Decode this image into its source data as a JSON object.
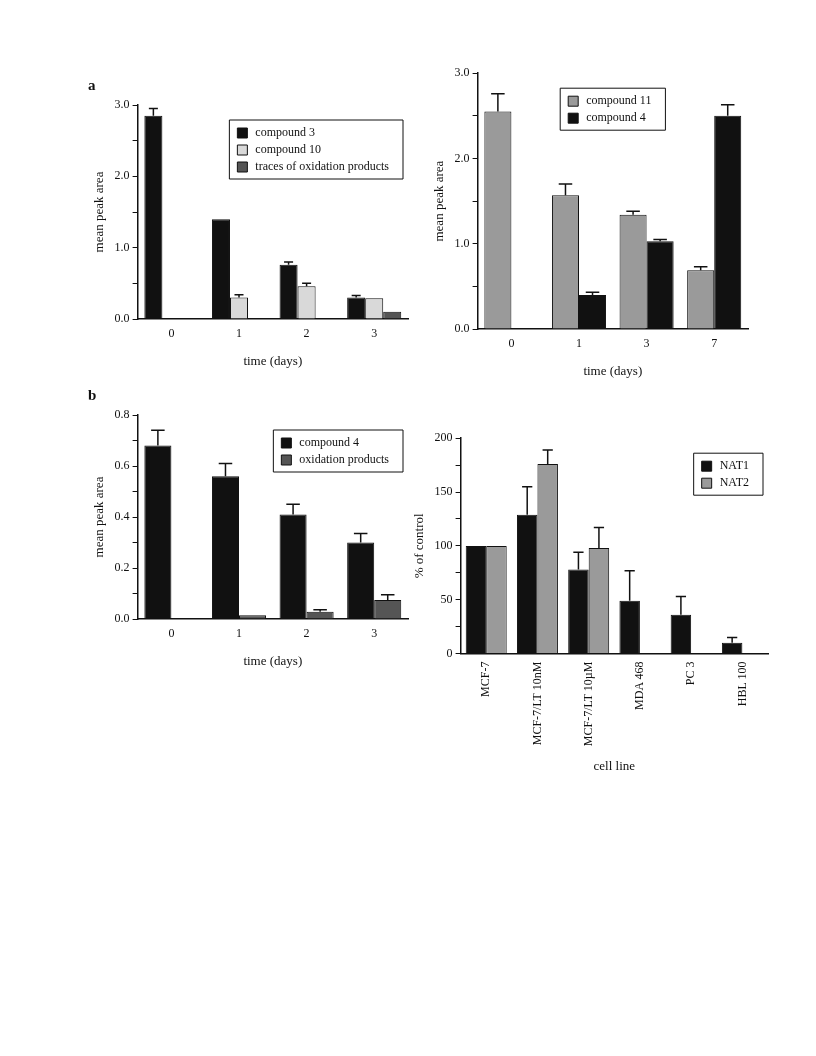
{
  "chart_data": [
    {
      "type": "bar",
      "title": "a",
      "xlabel": "time (days)",
      "ylabel": "mean peak area",
      "categories": [
        "0",
        "1",
        "2",
        "3"
      ],
      "series": [
        {
          "name": "compound 3",
          "color": "#111111",
          "values": [
            2.85,
            1.4,
            0.76,
            0.3
          ],
          "errors": [
            [
              2.85,
              2.95
            ],
            null,
            [
              0.76,
              0.8
            ],
            [
              0.3,
              0.33
            ]
          ]
        },
        {
          "name": "compound 10",
          "color": "#d9d9d9",
          "values": [
            null,
            0.3,
            0.46,
            0.29
          ],
          "errors": [
            null,
            [
              0.3,
              0.34
            ],
            [
              0.46,
              0.5
            ],
            null
          ]
        },
        {
          "name": "traces of oxidation products",
          "color": "#555555",
          "values": [
            null,
            null,
            null,
            0.1
          ]
        }
      ],
      "ylim": [
        0,
        3
      ],
      "yticks": [
        {
          "value": 0,
          "label": "0.0"
        },
        {
          "value": 0.5,
          "label": null
        },
        {
          "value": 1,
          "label": "1.0"
        },
        {
          "value": 1.5,
          "label": null
        },
        {
          "value": 2,
          "label": "2.0"
        },
        {
          "value": 2.5,
          "label": null
        },
        {
          "value": 3,
          "label": "3.0"
        }
      ],
      "grid": false,
      "legend": "top right"
    },
    {
      "type": "bar",
      "xlabel": "time (days)",
      "ylabel": "mean peak area",
      "categories": [
        "0",
        "1",
        "3",
        "7"
      ],
      "series": [
        {
          "name": "compound 11",
          "color": "#9a9a9a",
          "values": [
            2.55,
            1.57,
            1.34,
            0.69
          ],
          "errors": [
            [
              2.55,
              2.76
            ],
            [
              1.57,
              1.7
            ],
            [
              1.34,
              1.38
            ],
            [
              0.69,
              0.73
            ]
          ]
        },
        {
          "name": "compound 4",
          "color": "#111111",
          "values": [
            null,
            0.4,
            1.03,
            2.5
          ],
          "errors": [
            null,
            [
              0.4,
              0.43
            ],
            [
              1.03,
              1.05
            ],
            [
              2.5,
              2.63
            ]
          ]
        }
      ],
      "ylim": [
        0,
        3
      ],
      "yticks": [
        {
          "value": 0,
          "label": "0.0"
        },
        {
          "value": 0.5,
          "label": null
        },
        {
          "value": 1,
          "label": "1.0"
        },
        {
          "value": 1.5,
          "label": null
        },
        {
          "value": 2,
          "label": "2.0"
        },
        {
          "value": 2.5,
          "label": null
        },
        {
          "value": 3,
          "label": "3.0"
        }
      ],
      "grid": false,
      "legend": "top"
    },
    {
      "type": "bar",
      "title": "b",
      "xlabel": "time (days)",
      "ylabel": "mean peak area",
      "categories": [
        "0",
        "1",
        "2",
        "3"
      ],
      "series": [
        {
          "name": "compound 4",
          "color": "#111111",
          "values": [
            0.68,
            0.56,
            0.41,
            0.3
          ],
          "errors": [
            [
              0.68,
              0.74
            ],
            [
              0.56,
              0.61
            ],
            [
              0.41,
              0.45
            ],
            [
              0.3,
              0.335
            ]
          ]
        },
        {
          "name": "oxidation products",
          "color": "#555555",
          "values": [
            null,
            0.015,
            0.028,
            0.075
          ],
          "errors": [
            null,
            null,
            [
              0.028,
              0.036
            ],
            [
              0.075,
              0.095
            ]
          ]
        }
      ],
      "ylim": [
        0,
        0.8
      ],
      "yticks": [
        {
          "value": 0,
          "label": "0.0"
        },
        {
          "value": 0.1,
          "label": null
        },
        {
          "value": 0.2,
          "label": "0.2"
        },
        {
          "value": 0.3,
          "label": null
        },
        {
          "value": 0.4,
          "label": "0.4"
        },
        {
          "value": 0.5,
          "label": null
        },
        {
          "value": 0.6,
          "label": "0.6"
        },
        {
          "value": 0.7,
          "label": null
        },
        {
          "value": 0.8,
          "label": "0.8"
        }
      ],
      "grid": false,
      "legend": "top right"
    },
    {
      "type": "bar",
      "xlabel": "cell line",
      "ylabel": "% of control",
      "categories": [
        "MCF-7",
        "MCF-7/LT 10nM",
        "MCF-7/LT 10µM",
        "MDA 468",
        "PC 3",
        "HBL 100"
      ],
      "series": [
        {
          "name": "NAT1",
          "color": "#111111",
          "values": [
            100,
            129,
            78,
            49,
            36,
            10
          ],
          "errors": [
            null,
            [
              129,
              155
            ],
            [
              78,
              94
            ],
            [
              49,
              77
            ],
            [
              36,
              53
            ],
            [
              10,
              15
            ]
          ]
        },
        {
          "name": "NAT2",
          "color": "#9a9a9a",
          "values": [
            100,
            176,
            98,
            null,
            null,
            null
          ],
          "errors": [
            null,
            [
              176,
              189
            ],
            [
              98,
              117
            ],
            null,
            null,
            null
          ]
        }
      ],
      "ylim": [
        0,
        200
      ],
      "yticks": [
        0,
        {
          "value": 25,
          "label": null
        },
        50,
        {
          "value": 75,
          "label": null
        },
        100,
        {
          "value": 125,
          "label": null
        },
        150,
        {
          "value": 175,
          "label": null
        },
        200
      ],
      "grid": false,
      "legend": "top right"
    }
  ]
}
